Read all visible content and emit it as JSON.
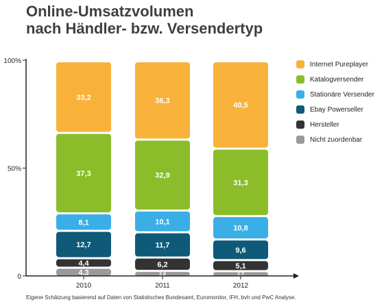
{
  "title_line1": "Online-Umsatzvolumen",
  "title_line2": "nach Händler- bzw. Versendertyp",
  "source_note": "Eigene Schätzung basierend auf Daten von Statistisches Bundesamt, Euromonitor, IFH, bvh und PwC Analyse.",
  "chart_data": {
    "type": "bar",
    "stacked": true,
    "categories": [
      "2010",
      "2011",
      "2012"
    ],
    "ylim": [
      0,
      100
    ],
    "yticks": [
      "0",
      "50%",
      "100%"
    ],
    "legend_position": "right",
    "grid": false,
    "series": [
      {
        "name": "Nicht zuordenbar",
        "color": "#9a9a9a",
        "values": [
          4.3,
          2.8,
          2.7
        ],
        "labels": [
          "4,3",
          "2,8",
          "2,7"
        ]
      },
      {
        "name": "Hersteller",
        "color": "#333333",
        "values": [
          4.4,
          6.2,
          5.1
        ],
        "labels": [
          "4,4",
          "6,2",
          "5,1"
        ]
      },
      {
        "name": "Ebay Powerseller",
        "color": "#0e5a78",
        "values": [
          12.7,
          11.7,
          9.6
        ],
        "labels": [
          "12,7",
          "11,7",
          "9,6"
        ]
      },
      {
        "name": "Stationäre Versender",
        "color": "#3aaee6",
        "values": [
          8.1,
          10.1,
          10.8
        ],
        "labels": [
          "8,1",
          "10,1",
          "10,8"
        ]
      },
      {
        "name": "Katalogversender",
        "color": "#8bbd2a",
        "values": [
          37.3,
          32.9,
          31.3
        ],
        "labels": [
          "37,3",
          "32,9",
          "31,3"
        ]
      },
      {
        "name": "Internet Pureplayer",
        "color": "#f8b23a",
        "values": [
          33.2,
          36.3,
          40.5
        ],
        "labels": [
          "33,2",
          "36,3",
          "40,5"
        ]
      }
    ],
    "legend_order": [
      "Internet Pureplayer",
      "Katalogversender",
      "Stationäre Versender",
      "Ebay Powerseller",
      "Hersteller",
      "Nicht zuordenbar"
    ]
  }
}
